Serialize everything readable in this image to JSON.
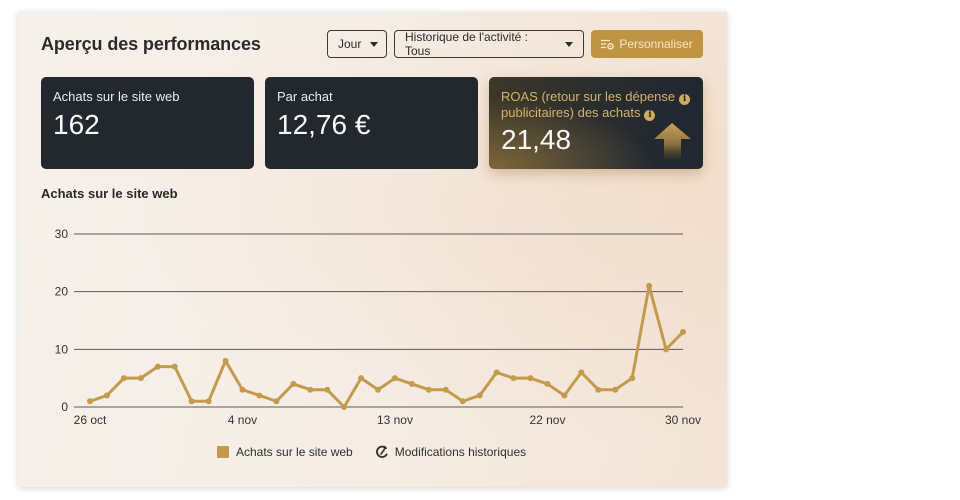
{
  "header": {
    "title": "Aperçu des performances"
  },
  "toolbar": {
    "period_select": {
      "value": "Jour"
    },
    "history_select": {
      "value": "Historique de l'activité : Tous"
    },
    "customize_button": {
      "label": "Personnaliser",
      "icon": "customize-settings-icon"
    }
  },
  "kpis": [
    {
      "label": "Achats sur le site web",
      "value": "162"
    },
    {
      "label": "Par achat",
      "value": "12,76 €"
    },
    {
      "label_line1": "ROAS (retour sur les dépense",
      "label_line2": "publicitaires) des achats",
      "info_icon": "i",
      "value": "21,48",
      "trend_icon": "up-arrow-icon"
    }
  ],
  "chart_section": {
    "title": "Achats sur le site web"
  },
  "legend": [
    {
      "label": "Achats sur le site web",
      "icon": "color-swatch"
    },
    {
      "label": "Modifications historiques",
      "icon": "history-changes-icon"
    }
  ],
  "colors": {
    "accent_gold": "#c49a4e",
    "button_gold": "#bf9443",
    "card_dark": "#23282e",
    "roas_text": "#d6b168",
    "gridline": "#5a5a5a"
  },
  "chart_data": {
    "type": "line",
    "title": "Achats sur le site web",
    "xlabel": "",
    "ylabel": "",
    "ylim": [
      0,
      30
    ],
    "y_ticks": [
      0,
      10,
      20,
      30
    ],
    "grid": true,
    "legend_position": "bottom",
    "x": [
      "26 oct",
      "27 oct",
      "28 oct",
      "29 oct",
      "30 oct",
      "31 oct",
      "1 nov",
      "2 nov",
      "3 nov",
      "4 nov",
      "5 nov",
      "6 nov",
      "7 nov",
      "8 nov",
      "9 nov",
      "10 nov",
      "11 nov",
      "12 nov",
      "13 nov",
      "14 nov",
      "15 nov",
      "16 nov",
      "17 nov",
      "18 nov",
      "19 nov",
      "20 nov",
      "21 nov",
      "22 nov",
      "23 nov",
      "24 nov",
      "25 nov",
      "26 nov",
      "27 nov",
      "28 nov",
      "29 nov",
      "30 nov"
    ],
    "x_tick_labels": [
      "26 oct",
      "4 nov",
      "13 nov",
      "22 nov",
      "30 nov"
    ],
    "x_tick_indices": [
      0,
      9,
      18,
      27,
      35
    ],
    "series": [
      {
        "name": "Achats sur le site web",
        "color": "#c49a4e",
        "values": [
          1,
          2,
          5,
          5,
          7,
          7,
          1,
          1,
          8,
          3,
          2,
          1,
          4,
          3,
          3,
          0,
          5,
          3,
          5,
          4,
          3,
          3,
          1,
          2,
          6,
          5,
          5,
          4,
          2,
          6,
          3,
          3,
          5,
          21,
          10,
          13
        ]
      }
    ]
  }
}
